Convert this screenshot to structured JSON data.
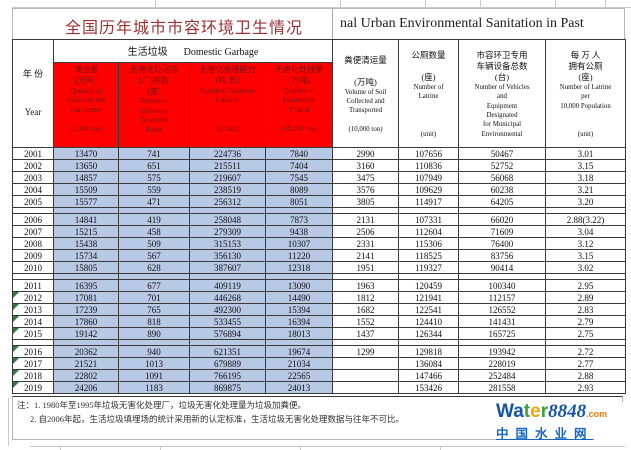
{
  "title": {
    "cn": "全国历年城市市容环境卫生情况",
    "en": "nal Urban Environmental Sanitation in Past"
  },
  "table": {
    "header": {
      "year": "年 份\n\nYear",
      "band": {
        "cn": "生活垃圾",
        "en": "Domestic Garbage"
      },
      "garbage_cols": [
        {
          "cn": "清运量\n(万吨)",
          "en": "Quantity of\nCollected and\nTransported\n\n(10,000 ton)"
        },
        {
          "cn": "无害化处理场\n(厂)座数\n(座)",
          "en": "Number of\nHarmless\nTreatment\nPlants"
        },
        {
          "cn": "无害化处理能力\n(吨/日)",
          "en": "Harmless Treatment\nCapacity\n\n\n(ton/day)"
        },
        {
          "cn": "无害化处理量\n(万吨)",
          "en": "Quantity of\nHarmlessly\nTreated\n\n(10,000 ton)"
        }
      ],
      "right_cols": [
        {
          "cn": "粪便清运量\n\n(万吨)",
          "en": "Volume of Soil\nCollected and\nTransported\n\n(10,000 ton)"
        },
        {
          "cn": "公厕数量\n\n(座)",
          "en": "Number of\nLatrine\n\n\n\n(unit)"
        },
        {
          "cn": "市容环卫专用\n车辆设备总数\n(台)",
          "en": "Number of Vehicles\nand\nEquipment\nDesignated\nfor Municipal\nEnvironmental"
        },
        {
          "cn": "每 万 人\n拥有公厕\n(座)",
          "en": "Number of Latrine\nper\n10,000 Population\n\n\n(unit)"
        }
      ]
    },
    "rows": [
      {
        "year": "2001",
        "flag": false,
        "values": [
          "13470",
          "741",
          "224736",
          "7840",
          "2990",
          "107656",
          "50467",
          "3.01"
        ]
      },
      {
        "year": "2002",
        "flag": false,
        "values": [
          "13650",
          "651",
          "215511",
          "7404",
          "3160",
          "110836",
          "52752",
          "3.15"
        ]
      },
      {
        "year": "2003",
        "flag": false,
        "values": [
          "14857",
          "575",
          "219607",
          "7545",
          "3475",
          "107949",
          "56068",
          "3.18"
        ]
      },
      {
        "year": "2004",
        "flag": false,
        "values": [
          "15509",
          "559",
          "238519",
          "8089",
          "3576",
          "109629",
          "60238",
          "3.21"
        ]
      },
      {
        "year": "2005",
        "flag": false,
        "values": [
          "15577",
          "471",
          "256312",
          "8051",
          "3805",
          "114917",
          "64205",
          "3.20"
        ]
      },
      {
        "separator": true
      },
      {
        "year": "2006",
        "flag": false,
        "values": [
          "14841",
          "419",
          "258048",
          "7873",
          "2131",
          "107331",
          "66020",
          "2.88(3.22)"
        ]
      },
      {
        "year": "2007",
        "flag": false,
        "values": [
          "15215",
          "458",
          "279309",
          "9438",
          "2506",
          "112604",
          "71609",
          "3.04"
        ]
      },
      {
        "year": "2008",
        "flag": false,
        "values": [
          "15438",
          "509",
          "315153",
          "10307",
          "2331",
          "115306",
          "76400",
          "3.12"
        ]
      },
      {
        "year": "2009",
        "flag": false,
        "values": [
          "15734",
          "567",
          "356130",
          "11220",
          "2141",
          "118525",
          "83756",
          "3.15"
        ]
      },
      {
        "year": "2010",
        "flag": false,
        "values": [
          "15805",
          "628",
          "387607",
          "12318",
          "1951",
          "119327",
          "90414",
          "3.02"
        ]
      },
      {
        "separator": true
      },
      {
        "year": "2011",
        "flag": false,
        "values": [
          "16395",
          "677",
          "409119",
          "13090",
          "1963",
          "120459",
          "100340",
          "2.95"
        ]
      },
      {
        "year": "2012",
        "flag": true,
        "values": [
          "17081",
          "701",
          "446268",
          "14490",
          "1812",
          "121941",
          "112157",
          "2.89"
        ]
      },
      {
        "year": "2013",
        "flag": true,
        "values": [
          "17239",
          "765",
          "492300",
          "15394",
          "1682",
          "122541",
          "126552",
          "2.83"
        ]
      },
      {
        "year": "2014",
        "flag": true,
        "values": [
          "17860",
          "818",
          "533455",
          "16394",
          "1552",
          "124410",
          "141431",
          "2.79"
        ]
      },
      {
        "year": "2015",
        "flag": true,
        "values": [
          "19142",
          "890",
          "576894",
          "18013",
          "1437",
          "126344",
          "165725",
          "2.75"
        ]
      },
      {
        "separator": true
      },
      {
        "year": "2016",
        "flag": true,
        "values": [
          "20362",
          "940",
          "621351",
          "19674",
          "1299",
          "129818",
          "193942",
          "2.72"
        ]
      },
      {
        "year": "2017",
        "flag": true,
        "values": [
          "21521",
          "1013",
          "679889",
          "21034",
          "",
          "136084",
          "228019",
          "2.77"
        ]
      },
      {
        "year": "2018",
        "flag": true,
        "values": [
          "22802",
          "1091",
          "766195",
          "22565",
          "",
          "147466",
          "252484",
          "2.88"
        ]
      },
      {
        "year": "2019",
        "flag": true,
        "values": [
          "24206",
          "1183",
          "869875",
          "24013",
          "",
          "153426",
          "281558",
          "2.93"
        ]
      }
    ]
  },
  "notes": {
    "line1": "注：1. 1980年至1995年垃圾无害化处理厂，垃圾无害化处理量为垃圾加粪便。",
    "line2": "2. 自2006年起，生活垃圾填埋场的统计采用新的认定标准，生活垃圾无害化处理数据与往年不可比。"
  },
  "logo": {
    "letters": [
      {
        "t": "Wa",
        "color": "#1554ae"
      },
      {
        "t": "t",
        "color": "#3aa23a"
      },
      {
        "t": "e",
        "color": "#f2a50c"
      },
      {
        "t": "r",
        "color": "#3aa23a"
      },
      {
        "t": "8848",
        "color": "#1554ae",
        "italic": true
      },
      {
        "t": ".com",
        "color": "#e8790f",
        "small": true
      }
    ],
    "cn": "中国水业网"
  },
  "colors": {
    "header_red": "#fe0000",
    "header_red_text": "#7d1113",
    "cell_blue": "#b7c9e5",
    "title_red": "#9a3334",
    "flag_green": "#2f7a35",
    "logo_blue": "#1766c4"
  }
}
